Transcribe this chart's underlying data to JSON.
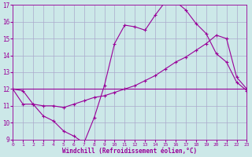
{
  "xlabel": "Windchill (Refroidissement éolien,°C)",
  "bg_color": "#cce8e8",
  "grid_color": "#aaaacc",
  "line_color": "#990099",
  "xmin": 0,
  "xmax": 23,
  "ymin": 9,
  "ymax": 17,
  "line1_x": [
    0,
    1,
    2,
    3,
    4,
    5,
    6,
    7,
    8,
    9,
    10,
    11,
    12,
    13,
    14,
    15,
    16,
    17,
    18,
    19,
    20,
    21,
    22,
    23
  ],
  "line1_y": [
    12.0,
    11.9,
    11.1,
    10.4,
    10.1,
    9.5,
    9.2,
    8.8,
    10.3,
    12.2,
    14.7,
    15.8,
    15.7,
    15.5,
    16.4,
    17.2,
    17.2,
    16.7,
    15.9,
    15.3,
    14.1,
    13.6,
    12.4,
    11.9
  ],
  "line2_x": [
    0,
    1,
    2,
    3,
    4,
    5,
    6,
    7,
    8,
    9,
    10,
    11,
    12,
    13,
    14,
    15,
    16,
    17,
    18,
    19,
    20,
    21,
    22,
    23
  ],
  "line2_y": [
    12.0,
    11.1,
    11.1,
    11.0,
    11.0,
    10.9,
    11.1,
    11.3,
    11.5,
    11.6,
    11.8,
    12.0,
    12.2,
    12.5,
    12.8,
    13.2,
    13.6,
    13.9,
    14.3,
    14.7,
    15.2,
    15.0,
    12.7,
    12.0
  ],
  "line3_x": [
    0,
    23
  ],
  "line3_y": [
    12.0,
    12.0
  ],
  "yticks": [
    9,
    10,
    11,
    12,
    13,
    14,
    15,
    16,
    17
  ],
  "xticks": [
    0,
    1,
    2,
    3,
    4,
    5,
    6,
    7,
    8,
    9,
    10,
    11,
    12,
    13,
    14,
    15,
    16,
    17,
    18,
    19,
    20,
    21,
    22,
    23
  ]
}
